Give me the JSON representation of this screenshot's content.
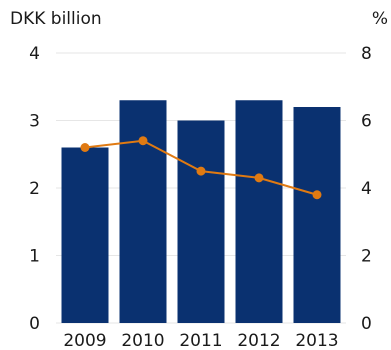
{
  "chart_data": {
    "type": "bar",
    "left_unit": "DKK billion",
    "right_unit": "%",
    "categories": [
      "2009",
      "2010",
      "2011",
      "2012",
      "2013"
    ],
    "series": [
      {
        "kind": "bar",
        "axis": "left",
        "color": "#0a3170",
        "values": [
          2.6,
          3.3,
          3.0,
          3.3,
          3.2
        ]
      },
      {
        "kind": "line",
        "axis": "right",
        "color": "#e07a12",
        "values": [
          5.2,
          5.4,
          4.5,
          4.3,
          3.8
        ]
      }
    ],
    "y_left": {
      "range": [
        0,
        4
      ],
      "ticks": [
        "0",
        "1",
        "2",
        "3",
        "4"
      ]
    },
    "y_right": {
      "range": [
        0,
        8
      ],
      "ticks": [
        "0",
        "2",
        "4",
        "6",
        "8"
      ]
    },
    "grid": true
  }
}
